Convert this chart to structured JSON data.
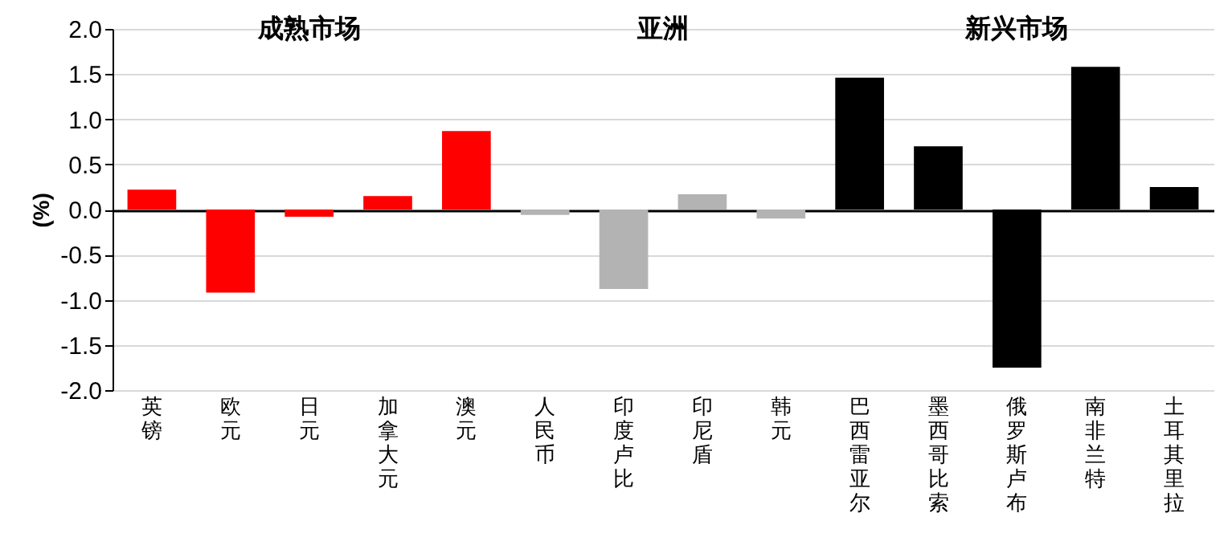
{
  "chart_data": {
    "type": "bar",
    "ylabel": "(%)",
    "categories": [
      "英镑",
      "欧元",
      "日元",
      "加拿大元",
      "澳元",
      "人民币",
      "印度卢比",
      "印尼盾",
      "韩元",
      "巴西雷亚尔",
      "墨西哥比索",
      "俄罗斯卢布",
      "南非兰特",
      "土耳其里拉"
    ],
    "values": [
      0.22,
      -0.92,
      -0.08,
      0.15,
      0.87,
      -0.06,
      -0.88,
      0.17,
      -0.1,
      1.46,
      0.7,
      -1.75,
      1.58,
      0.25
    ],
    "colors": [
      "#ff0000",
      "#ff0000",
      "#ff0000",
      "#ff0000",
      "#ff0000",
      "#b3b3b3",
      "#b3b3b3",
      "#b3b3b3",
      "#b3b3b3",
      "#000000",
      "#000000",
      "#000000",
      "#000000",
      "#000000"
    ],
    "annotations": [
      "成熟市场",
      "亚洲",
      "新兴市场"
    ],
    "ylim": [
      -2,
      2
    ],
    "yticks": [
      {
        "value": -2,
        "label": "-2.0"
      },
      {
        "value": -1.5,
        "label": "-1.5"
      },
      {
        "value": -1,
        "label": "-1.0"
      },
      {
        "value": -0.5,
        "label": "-0.5"
      },
      {
        "value": 0,
        "label": "0.0"
      },
      {
        "value": 0.5,
        "label": "0.5"
      },
      {
        "value": 1,
        "label": "1.0"
      },
      {
        "value": 1.5,
        "label": "1.5"
      },
      {
        "value": 2,
        "label": "2.0"
      }
    ],
    "grid": "y"
  }
}
